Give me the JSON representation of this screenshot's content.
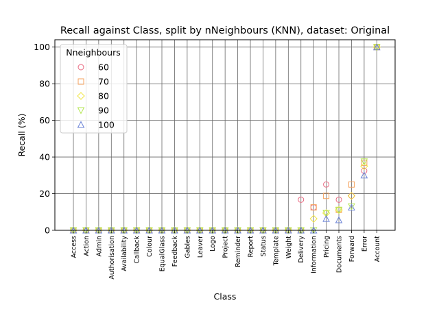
{
  "chart_data": {
    "type": "scatter",
    "title": "Recall against Class, split by nNeighbours (KNN), dataset: Original",
    "xlabel": "Class",
    "ylabel": "Recall (%)",
    "ylim": [
      0,
      104
    ],
    "yticks": [
      0,
      20,
      40,
      60,
      80,
      100
    ],
    "grid": true,
    "legend": {
      "title": "Nneighbours",
      "position": "top-left"
    },
    "categories": [
      "Access",
      "Action",
      "Admin",
      "Authorisation",
      "Availability",
      "Callback",
      "Colour",
      "EqualGlass",
      "Feedback",
      "Gables",
      "Leaver",
      "Logo",
      "Project",
      "Reminder",
      "Report",
      "Status",
      "Template",
      "Weight",
      "Delivery",
      "Information",
      "Pricing",
      "Documents",
      "Forward",
      "Error",
      "Account"
    ],
    "series": [
      {
        "name": "60",
        "marker": "circle",
        "color": "#e8677f",
        "values": [
          0,
          0,
          0,
          0,
          0,
          0,
          0,
          0,
          0,
          0,
          0,
          0,
          0,
          0,
          0,
          0,
          0,
          0,
          16.7,
          12.5,
          25,
          16.7,
          18.8,
          32.5,
          100
        ]
      },
      {
        "name": "70",
        "marker": "square",
        "color": "#f5a25c",
        "values": [
          0,
          0,
          0,
          0,
          0,
          0,
          0,
          0,
          0,
          0,
          0,
          0,
          0,
          0,
          0,
          0,
          0,
          0,
          0,
          12.5,
          18.8,
          11.1,
          25,
          36.8,
          100
        ]
      },
      {
        "name": "80",
        "marker": "diamond",
        "color": "#f0e442",
        "values": [
          0,
          0,
          0,
          0,
          0,
          0,
          0,
          0,
          0,
          0,
          0,
          0,
          0,
          0,
          0,
          0,
          0,
          0,
          0,
          6.3,
          9.4,
          11.1,
          18.8,
          35,
          100
        ]
      },
      {
        "name": "90",
        "marker": "triangle-down",
        "color": "#b5e655",
        "values": [
          0,
          0,
          0,
          0,
          0,
          0,
          0,
          0,
          0,
          0,
          0,
          0,
          0,
          0,
          0,
          0,
          0,
          0,
          0,
          0,
          9.4,
          11.1,
          13,
          37.5,
          100
        ]
      },
      {
        "name": "100",
        "marker": "triangle-up",
        "color": "#6a82d6",
        "values": [
          0,
          0,
          0,
          0,
          0,
          0,
          0,
          0,
          0,
          0,
          0,
          0,
          0,
          0,
          0,
          0,
          0,
          0,
          0,
          0,
          6.3,
          5.6,
          12.5,
          30,
          100
        ]
      }
    ]
  }
}
